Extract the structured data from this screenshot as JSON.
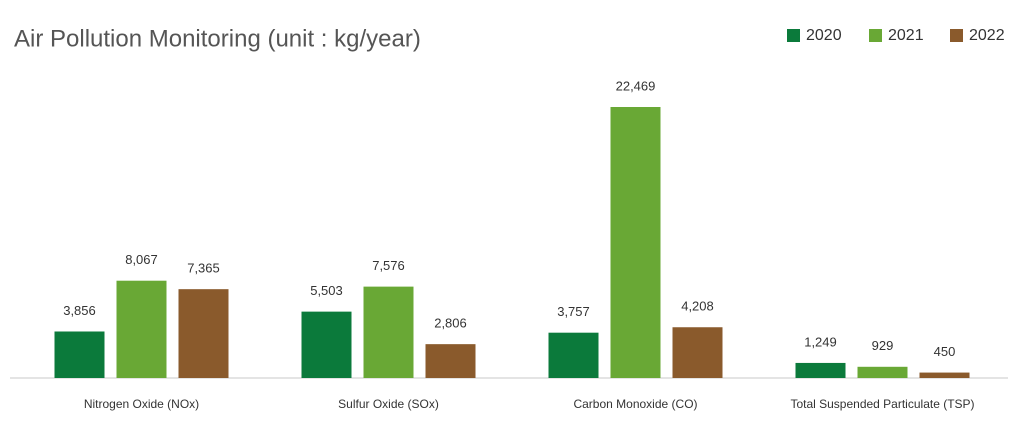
{
  "chart_data": {
    "type": "bar",
    "title": "Air Pollution Monitoring (unit : kg/year)",
    "categories": [
      "Nitrogen Oxide (NOx)",
      "Sulfur Oxide (SOx)",
      "Carbon Monoxide (CO)",
      "Total Suspended Particulate (TSP)"
    ],
    "series": [
      {
        "name": "2020",
        "color": "#0b7a3b",
        "values": [
          3856,
          5503,
          3757,
          1249
        ],
        "value_labels": [
          "3,856",
          "5,503",
          "3,757",
          "1,249"
        ]
      },
      {
        "name": "2021",
        "color": "#69a835",
        "values": [
          8067,
          7576,
          22469,
          929
        ],
        "value_labels": [
          "8,067",
          "7,576",
          "22,469",
          "929"
        ]
      },
      {
        "name": "2022",
        "color": "#8a5a2c",
        "values": [
          7365,
          2806,
          4208,
          450
        ],
        "value_labels": [
          "7,365",
          "2,806",
          "4,208",
          "450"
        ]
      }
    ],
    "legend": "top-right"
  }
}
